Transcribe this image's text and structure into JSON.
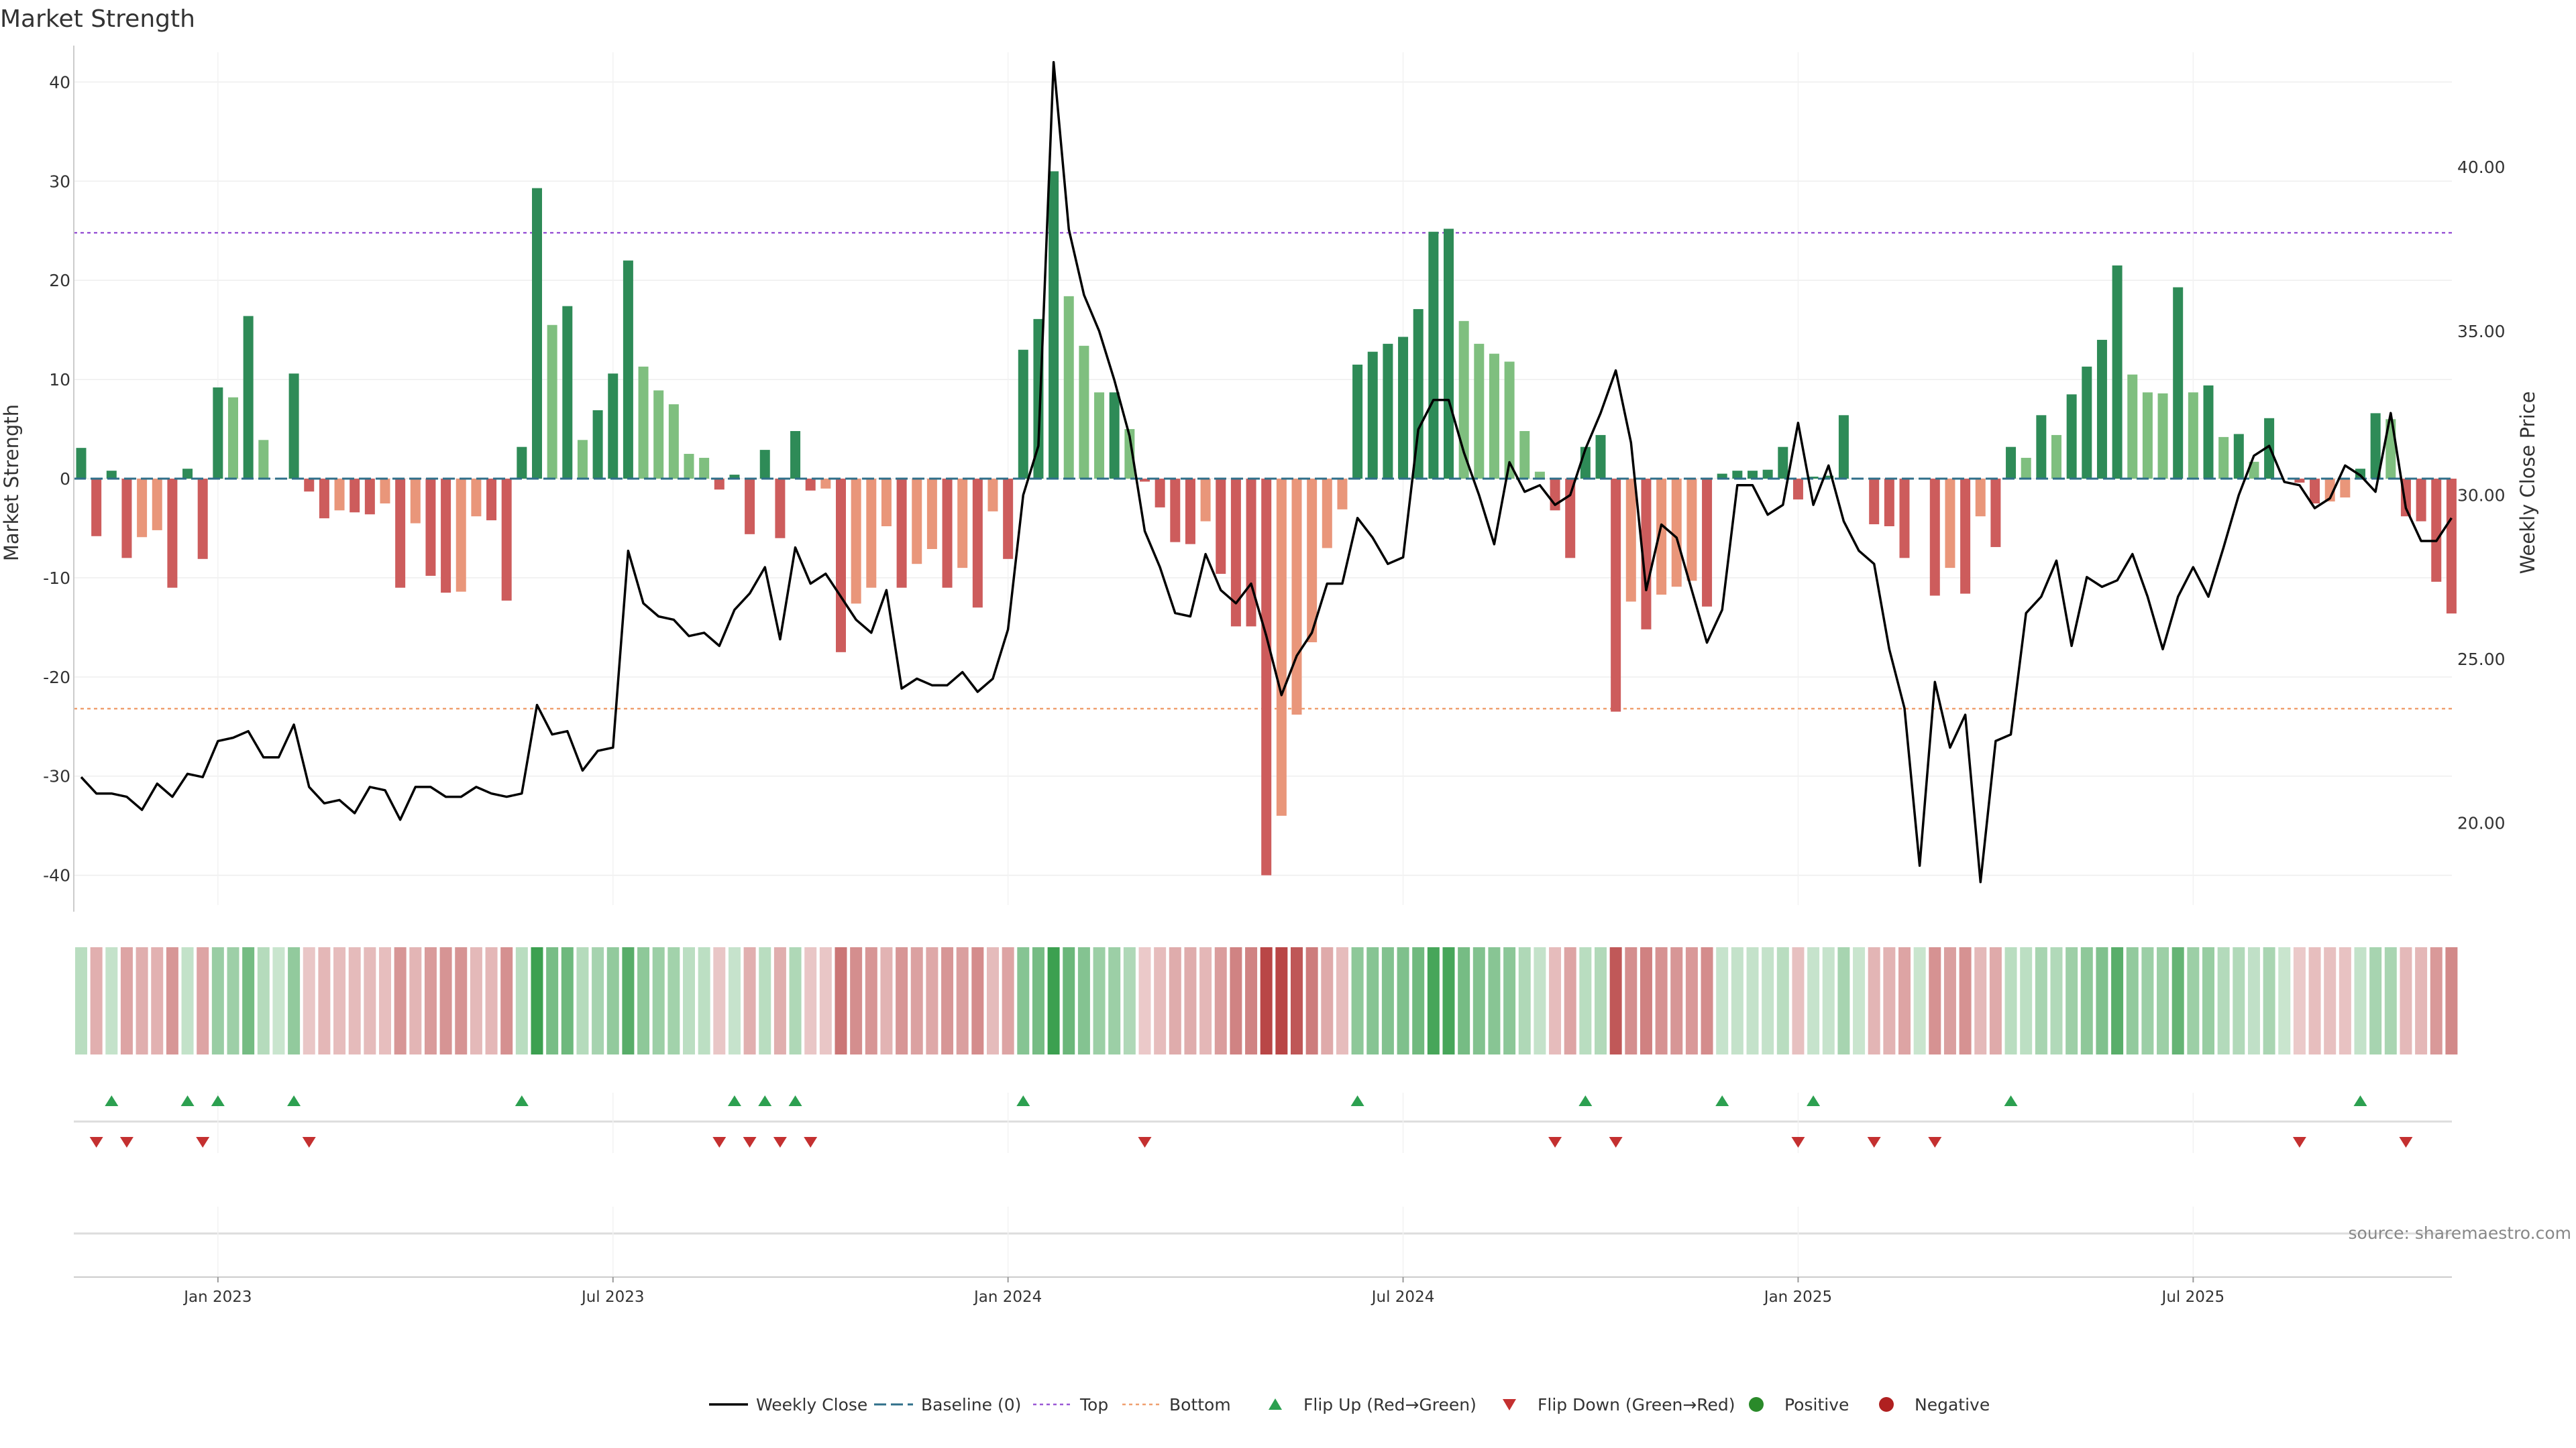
{
  "title": "Market Strength",
  "source": "source: sharemaestro.com",
  "chart_data": {
    "type": "bar",
    "ylabel": "Market Strength",
    "y2label": "Weekly Close Price",
    "ylim": [
      -43,
      43
    ],
    "y2lim": [
      17.5,
      43.5
    ],
    "yticks": [
      40,
      30,
      20,
      10,
      0,
      -10,
      -20,
      -30,
      -40
    ],
    "y2ticks": [
      "40.00",
      "35.00",
      "30.00",
      "25.00",
      "20.00"
    ],
    "top_threshold": 24.8,
    "bottom_threshold": -23.2,
    "x_tick_labels": [
      "Jan 2023",
      "Jul 2023",
      "Jan 2024",
      "Jul 2024",
      "Jan 2025",
      "Jul 2025"
    ],
    "x_tick_weeks": [
      9,
      35,
      61,
      87,
      113,
      139
    ],
    "strength": [
      3.1,
      -5.8,
      0.8,
      -8.0,
      -5.9,
      -5.2,
      -11.0,
      1.0,
      -8.1,
      9.2,
      8.2,
      16.4,
      3.9,
      0.0,
      10.6,
      -1.3,
      -4.0,
      -3.2,
      -3.4,
      -3.6,
      -2.5,
      -11.0,
      -4.5,
      -9.8,
      -11.5,
      -11.4,
      -3.8,
      -4.2,
      -12.3,
      3.2,
      29.3,
      15.5,
      17.4,
      3.9,
      6.9,
      10.6,
      22.0,
      11.3,
      8.9,
      7.5,
      2.5,
      2.1,
      -1.1,
      0.4,
      -5.6,
      2.9,
      -6.0,
      4.8,
      -1.2,
      -1.0,
      -17.5,
      -12.6,
      -11.0,
      -4.8,
      -11.0,
      -8.6,
      -7.1,
      -11.0,
      -9.0,
      -13.0,
      -3.3,
      -8.1,
      13.0,
      16.1,
      31.0,
      18.4,
      13.4,
      8.7,
      8.7,
      5.0,
      -0.3,
      -2.9,
      -6.4,
      -6.6,
      -4.3,
      -9.6,
      -14.9,
      -14.9,
      -40.0,
      -34.0,
      -23.8,
      -16.5,
      -7.0,
      -3.1,
      11.5,
      12.8,
      13.6,
      14.3,
      17.1,
      24.9,
      25.2,
      15.9,
      13.6,
      12.6,
      11.8,
      4.8,
      0.7,
      -3.2,
      -8.0,
      3.2,
      4.4,
      -23.5,
      -12.4,
      -15.2,
      -11.7,
      -10.9,
      -10.3,
      -12.9,
      0.5,
      0.8,
      0.8,
      0.9,
      3.2,
      -2.1,
      0.2,
      0.3,
      6.4,
      0.0,
      -4.6,
      -4.8,
      -8.0,
      0.0,
      -11.8,
      -9.0,
      -11.6,
      -3.8,
      -6.9,
      3.2,
      2.1,
      6.4,
      4.4,
      8.5,
      11.3,
      14.0,
      21.5,
      10.5,
      8.7,
      8.6,
      19.3,
      8.7,
      9.4,
      4.2,
      4.5,
      1.7,
      6.1,
      0.0,
      -0.4,
      -2.5,
      -2.3,
      -1.9,
      1.0,
      6.6,
      6.0,
      -3.8,
      -4.3,
      -10.4,
      -13.6
    ],
    "weekly_close": [
      21.4,
      20.9,
      20.9,
      20.8,
      20.4,
      21.2,
      20.8,
      21.5,
      21.4,
      22.5,
      22.6,
      22.8,
      22.0,
      22.0,
      23.0,
      21.1,
      20.6,
      20.7,
      20.3,
      21.1,
      21.0,
      20.1,
      21.1,
      21.1,
      20.8,
      20.8,
      21.1,
      20.9,
      20.8,
      20.9,
      23.6,
      22.7,
      22.8,
      21.6,
      22.2,
      22.3,
      28.3,
      26.7,
      26.3,
      26.2,
      25.7,
      25.8,
      25.4,
      26.5,
      27.0,
      27.8,
      25.6,
      28.4,
      27.3,
      27.6,
      26.9,
      26.2,
      25.8,
      27.1,
      24.1,
      24.4,
      24.2,
      24.2,
      24.6,
      24.0,
      24.4,
      25.9,
      30.0,
      31.5,
      43.2,
      38.1,
      36.1,
      35.0,
      33.5,
      31.8,
      28.9,
      27.8,
      26.4,
      26.3,
      28.2,
      27.1,
      26.7,
      27.3,
      25.7,
      23.9,
      25.1,
      25.8,
      27.3,
      27.3,
      29.3,
      28.7,
      27.9,
      28.1,
      32.0,
      32.9,
      32.9,
      31.3,
      30.0,
      28.5,
      31.0,
      30.1,
      30.3,
      29.7,
      30.0,
      31.4,
      32.5,
      33.8,
      31.6,
      27.1,
      29.1,
      28.7,
      27.1,
      25.5,
      26.5,
      30.3,
      30.3,
      29.4,
      29.7,
      32.2,
      29.7,
      30.9,
      29.2,
      28.3,
      27.9,
      25.3,
      23.5,
      18.7,
      24.3,
      22.3,
      23.3,
      18.2,
      22.5,
      22.7,
      26.4,
      26.9,
      28.0,
      25.4,
      27.5,
      27.2,
      27.4,
      28.2,
      26.9,
      25.3,
      26.9,
      27.8,
      26.9,
      28.4,
      30.0,
      31.2,
      31.5,
      30.4,
      30.3,
      29.6,
      29.9,
      30.9,
      30.6,
      30.1,
      32.5,
      29.6,
      28.6,
      28.6,
      29.3
    ]
  },
  "legend": [
    {
      "label": "Weekly Close",
      "color": "#000000"
    },
    {
      "label": "Baseline (0)",
      "color": "#2f6f8a"
    },
    {
      "label": "Top",
      "color": "#9b59d6"
    },
    {
      "label": "Bottom",
      "color": "#f0a070"
    },
    {
      "label": "Flip Up (Red→Green)",
      "color": "#2ca050"
    },
    {
      "label": "Flip Down (Green→Red)",
      "color": "#c43030"
    },
    {
      "label": "Positive",
      "color": "#2a8a2a"
    },
    {
      "label": "Negative",
      "color": "#b02020"
    }
  ],
  "colors": {
    "pos_strong": "#2e8b57",
    "pos_weak": "#7fbf7f",
    "neg_strong": "#cd5c5c",
    "neg_weak": "#e9967a",
    "flip_up": "#2ca050",
    "flip_down": "#c43030"
  }
}
